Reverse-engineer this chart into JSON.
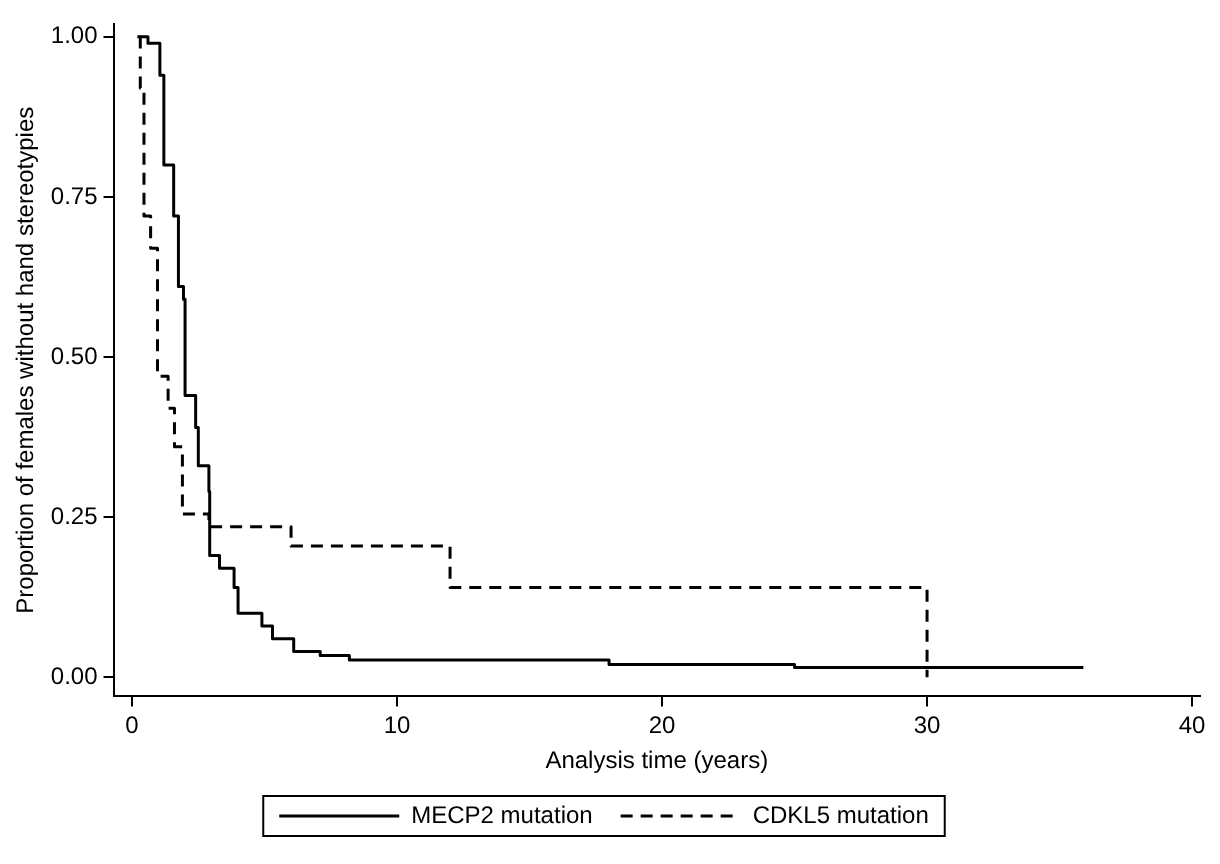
{
  "chart_data": {
    "type": "step",
    "xlabel": "Analysis time (years)",
    "ylabel": "Proportion of females without hand stereotypies",
    "xlim": [
      -0.7,
      40.3
    ],
    "ylim": [
      -0.03,
      1.02
    ],
    "xticks": [
      0,
      10,
      20,
      30,
      40
    ],
    "yticks": [
      {
        "value": 0,
        "label": "0.00"
      },
      {
        "value": 0.25,
        "label": "0.25"
      },
      {
        "value": 0.5,
        "label": "0.50"
      },
      {
        "value": 0.75,
        "label": "0.75"
      },
      {
        "value": 1,
        "label": "1.00"
      }
    ],
    "grid": false,
    "legend": "bottom",
    "marker": "none",
    "series": [
      {
        "name": "MECP2 mutation",
        "color": "#000000",
        "line_style": "solid",
        "x": [
          0.2,
          0.6,
          1.05,
          1.2,
          1.57,
          1.75,
          1.94,
          2.0,
          2.4,
          2.5,
          2.9,
          2.93,
          3.3,
          3.85,
          4.0,
          4.9,
          5.3,
          6.1,
          7.1,
          8.2,
          18,
          25,
          35.9
        ],
        "values": [
          1.0,
          0.99,
          0.94,
          0.8,
          0.72,
          0.61,
          0.59,
          0.44,
          0.39,
          0.33,
          0.29,
          0.19,
          0.17,
          0.14,
          0.1,
          0.08,
          0.06,
          0.04,
          0.034,
          0.027,
          0.02,
          0.015,
          0.015
        ]
      },
      {
        "name": "CDKL5 mutation",
        "color": "#000000",
        "line_style": "dashed",
        "x": [
          0.3,
          0.31,
          0.45,
          0.7,
          0.96,
          1.36,
          1.6,
          1.9,
          2.9,
          6.0,
          12,
          30
        ],
        "values": [
          1.0,
          0.92,
          0.72,
          0.67,
          0.47,
          0.42,
          0.36,
          0.255,
          0.235,
          0.205,
          0.14,
          0
        ]
      }
    ]
  }
}
